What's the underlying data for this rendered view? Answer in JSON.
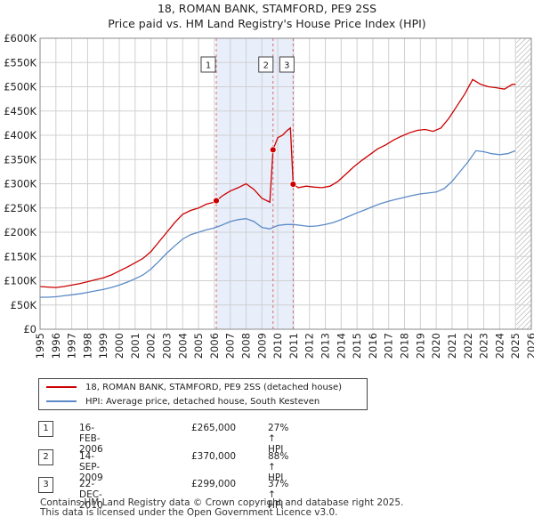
{
  "title_line1": "18, ROMAN BANK, STAMFORD, PE9 2SS",
  "title_line2": "Price paid vs. HM Land Registry's House Price Index (HPI)",
  "colors": {
    "property": "#cc0000",
    "hpi": "#5b8ac7",
    "shade": "#e8eefa",
    "grid": "#d0d0d0",
    "vline": "#d07070"
  },
  "chart_data": {
    "type": "line",
    "xlim": [
      1995,
      2026
    ],
    "ylim": [
      0,
      600000
    ],
    "y_ticks": [
      0,
      50000,
      100000,
      150000,
      200000,
      250000,
      300000,
      350000,
      400000,
      450000,
      500000,
      550000,
      600000
    ],
    "y_tick_labels": [
      "£0",
      "£50K",
      "£100K",
      "£150K",
      "£200K",
      "£250K",
      "£300K",
      "£350K",
      "£400K",
      "£450K",
      "£500K",
      "£550K",
      "£600K"
    ],
    "x_tick_labels": [
      "1995",
      "1996",
      "1997",
      "1998",
      "1999",
      "2000",
      "2001",
      "2002",
      "2003",
      "2004",
      "2005",
      "2006",
      "2007",
      "2008",
      "2009",
      "2010",
      "2011",
      "2012",
      "2013",
      "2014",
      "2015",
      "2016",
      "2017",
      "2018",
      "2019",
      "2020",
      "2021",
      "2022",
      "2023",
      "2024",
      "2025",
      "2026"
    ],
    "shaded_region": [
      2006.12,
      2010.97
    ],
    "future_hatch_start": 2025.05,
    "series": [
      {
        "name": "18, ROMAN BANK, STAMFORD, PE9 2SS (detached house)",
        "color": "#cc0000",
        "x": [
          1995.0,
          1995.5,
          1996.0,
          1996.5,
          1997.0,
          1997.5,
          1998.0,
          1998.5,
          1999.0,
          1999.5,
          2000.0,
          2000.5,
          2001.0,
          2001.5,
          2002.0,
          2002.5,
          2003.0,
          2003.5,
          2004.0,
          2004.5,
          2005.0,
          2005.5,
          2006.0,
          2006.12,
          2006.5,
          2007.0,
          2007.5,
          2008.0,
          2008.5,
          2009.0,
          2009.5,
          2009.7,
          2010.0,
          2010.3,
          2010.6,
          2010.8,
          2010.97,
          2011.3,
          2011.8,
          2012.3,
          2012.8,
          2013.3,
          2013.8,
          2014.3,
          2014.8,
          2015.3,
          2015.8,
          2016.3,
          2016.8,
          2017.3,
          2017.8,
          2018.3,
          2018.8,
          2019.3,
          2019.8,
          2020.3,
          2020.8,
          2021.3,
          2021.8,
          2022.3,
          2022.8,
          2023.3,
          2023.8,
          2024.3,
          2024.8,
          2025.0
        ],
        "y": [
          88000,
          87000,
          86000,
          88000,
          91000,
          94000,
          98000,
          102000,
          106000,
          112000,
          120000,
          128000,
          137000,
          146000,
          160000,
          180000,
          200000,
          220000,
          237000,
          245000,
          250000,
          258000,
          262000,
          265000,
          275000,
          285000,
          292000,
          300000,
          288000,
          270000,
          262000,
          370000,
          395000,
          400000,
          410000,
          415000,
          299000,
          292000,
          295000,
          293000,
          292000,
          295000,
          305000,
          320000,
          335000,
          348000,
          360000,
          372000,
          380000,
          390000,
          398000,
          405000,
          410000,
          412000,
          408000,
          415000,
          435000,
          460000,
          485000,
          515000,
          505000,
          500000,
          498000,
          495000,
          505000,
          505000
        ]
      },
      {
        "name": "HPI: Average price, detached house, South Kesteven",
        "color": "#5b8ac7",
        "x": [
          1995.0,
          1995.5,
          1996.0,
          1996.5,
          1997.0,
          1997.5,
          1998.0,
          1998.5,
          1999.0,
          1999.5,
          2000.0,
          2000.5,
          2001.0,
          2001.5,
          2002.0,
          2002.5,
          2003.0,
          2003.5,
          2004.0,
          2004.5,
          2005.0,
          2005.5,
          2006.0,
          2006.5,
          2007.0,
          2007.5,
          2008.0,
          2008.5,
          2009.0,
          2009.5,
          2010.0,
          2010.5,
          2011.0,
          2011.5,
          2012.0,
          2012.5,
          2013.0,
          2013.5,
          2014.0,
          2014.5,
          2015.0,
          2015.5,
          2016.0,
          2016.5,
          2017.0,
          2017.5,
          2018.0,
          2018.5,
          2019.0,
          2019.5,
          2020.0,
          2020.5,
          2021.0,
          2021.5,
          2022.0,
          2022.5,
          2023.0,
          2023.5,
          2024.0,
          2024.5,
          2025.0
        ],
        "y": [
          66000,
          66000,
          67000,
          69000,
          71000,
          73000,
          76000,
          79000,
          82000,
          86000,
          91000,
          97000,
          104000,
          112000,
          124000,
          140000,
          157000,
          172000,
          186000,
          195000,
          200000,
          205000,
          209000,
          215000,
          222000,
          226000,
          228000,
          222000,
          210000,
          207000,
          214000,
          216000,
          216000,
          214000,
          212000,
          213000,
          216000,
          220000,
          226000,
          233000,
          240000,
          246000,
          253000,
          259000,
          264000,
          268000,
          272000,
          276000,
          279000,
          281000,
          283000,
          290000,
          305000,
          325000,
          345000,
          368000,
          366000,
          362000,
          360000,
          362000,
          368000
        ]
      }
    ],
    "sale_markers": [
      {
        "label": "1",
        "x": 2006.12,
        "y": 265000
      },
      {
        "label": "2",
        "x": 2009.7,
        "y": 370000
      },
      {
        "label": "3",
        "x": 2010.97,
        "y": 299000
      }
    ],
    "legend": [
      {
        "label": "18, ROMAN BANK, STAMFORD, PE9 2SS (detached house)",
        "color": "#cc0000"
      },
      {
        "label": "HPI: Average price, detached house, South Kesteven",
        "color": "#5b8ac7"
      }
    ]
  },
  "transactions": [
    {
      "num": "1",
      "date": "16-FEB-2006",
      "price": "£265,000",
      "hpi": "27% ↑ HPI"
    },
    {
      "num": "2",
      "date": "14-SEP-2009",
      "price": "£370,000",
      "hpi": "88% ↑ HPI"
    },
    {
      "num": "3",
      "date": "22-DEC-2010",
      "price": "£299,000",
      "hpi": "37% ↑ HPI"
    }
  ],
  "footer_line1": "Contains HM Land Registry data © Crown copyright and database right 2025.",
  "footer_line2": "This data is licensed under the Open Government Licence v3.0."
}
